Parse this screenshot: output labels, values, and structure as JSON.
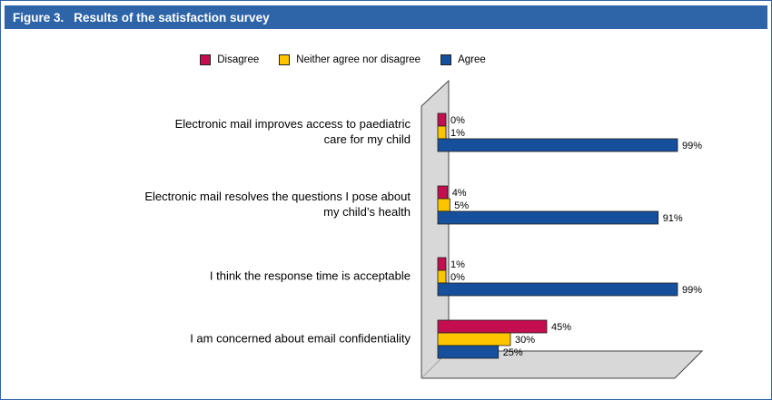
{
  "header": {
    "figure": "Figure 3.",
    "title": "Results of the satisfaction survey"
  },
  "colors": {
    "header_bar": "#2e64a8",
    "border": "#2e64a8",
    "wall_fill": "#d8d8d8",
    "wall_stroke": "#454545",
    "bar_outline": "#1f1f1f"
  },
  "chart_data": {
    "type": "bar",
    "orientation": "horizontal",
    "title": "Results of the satisfaction survey",
    "categories": [
      "Electronic mail improves access to paediatric\ncare for my child",
      "Electronic mail resolves the questions I pose about\nmy child’s health",
      "I think the response time is acceptable",
      "I am concerned about email confidentiality"
    ],
    "series": [
      {
        "name": "Disagree",
        "color": "#c50e4f",
        "values": [
          0,
          4,
          1,
          45
        ]
      },
      {
        "name": "Neither agree nor disagree",
        "color": "#fcc500",
        "values": [
          1,
          5,
          0,
          30
        ]
      },
      {
        "name": "Agree",
        "color": "#164f9c",
        "values": [
          99,
          91,
          99,
          25
        ]
      }
    ],
    "value_suffix": "%",
    "xlim": [
      0,
      100
    ],
    "xlabel": "",
    "ylabel": "",
    "grid": false,
    "axes_visible": false,
    "legend_position": "top-center",
    "value_labels": "outside-end",
    "backdrop": "3d-gray-wall-and-floor"
  }
}
